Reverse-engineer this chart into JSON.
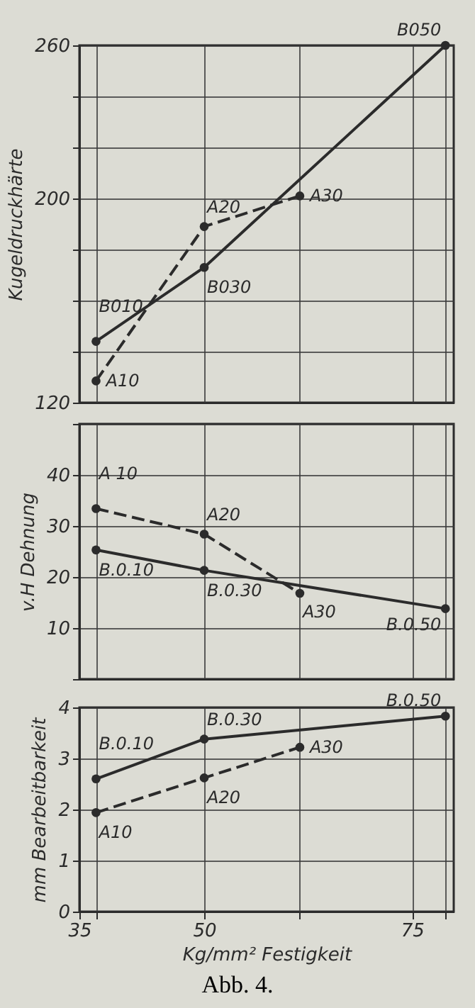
{
  "chart_data": [
    {
      "type": "line",
      "ylabel": "Kugeldruckhärte",
      "xlim": [
        35,
        80
      ],
      "ylim": [
        120,
        260
      ],
      "xticks": [
        35,
        {
          "value": 37,
          "label": null
        },
        50,
        {
          "value": 61.5,
          "label": null
        },
        75,
        {
          "value": 79,
          "label": null
        }
      ],
      "yticks": [
        120,
        {
          "value": 140,
          "label": null
        },
        {
          "value": 160,
          "label": null
        },
        {
          "value": 180,
          "label": null
        },
        200,
        {
          "value": 220,
          "label": null
        },
        {
          "value": 240,
          "label": null
        },
        260
      ],
      "tick_labels": "y",
      "grid": true,
      "marker": "circle",
      "series": [
        {
          "color": "#2b2b2b",
          "line_style": "dashed",
          "x": [
            37,
            50,
            61.5
          ],
          "values": [
            128.5,
            189,
            201
          ]
        },
        {
          "color": "#2b2b2b",
          "line_style": "solid",
          "x": [
            37,
            50,
            79
          ],
          "values": [
            144,
            173,
            260
          ]
        }
      ],
      "annotations": [
        {
          "text": "A10",
          "x": 37,
          "y": 128.5
        },
        {
          "text": "A20",
          "x": 50,
          "y": 189
        },
        {
          "text": "A30",
          "x": 61.5,
          "y": 201
        },
        {
          "text": "B010",
          "x": 37,
          "y": 144
        },
        {
          "text": "B030",
          "x": 50,
          "y": 173
        },
        {
          "text": "B050",
          "x": 79,
          "y": 260
        }
      ]
    },
    {
      "type": "line",
      "ylabel": "v.H Dehnung",
      "xlim": [
        35,
        80
      ],
      "ylim": [
        0,
        50
      ],
      "xticks": [
        35,
        {
          "value": 37,
          "label": null
        },
        50,
        {
          "value": 61.5,
          "label": null
        },
        75,
        {
          "value": 79,
          "label": null
        }
      ],
      "yticks": [
        {
          "value": 0,
          "label": null
        },
        10,
        20,
        30,
        40,
        {
          "value": 50,
          "label": null
        }
      ],
      "tick_labels": "y",
      "grid": true,
      "marker": "circle",
      "series": [
        {
          "color": "#2b2b2b",
          "line_style": "dashed",
          "x": [
            37,
            50,
            61.5
          ],
          "values": [
            33.4,
            28.4,
            16.8
          ]
        },
        {
          "color": "#2b2b2b",
          "line_style": "solid",
          "x": [
            37,
            50,
            79
          ],
          "values": [
            25.3,
            21.3,
            13.8
          ]
        }
      ],
      "annotations": [
        {
          "text": "A 10",
          "x": 37,
          "y": 33.4
        },
        {
          "text": "A20",
          "x": 50,
          "y": 28.4
        },
        {
          "text": "A30",
          "x": 61.5,
          "y": 16.8
        },
        {
          "text": "B.0.10",
          "x": 37,
          "y": 25.3
        },
        {
          "text": "B.0.30",
          "x": 50,
          "y": 21.3
        },
        {
          "text": "B.0.50",
          "x": 79,
          "y": 13.8
        }
      ]
    },
    {
      "type": "line",
      "xlabel": "Kg/mm² Festigkeit",
      "ylabel": "mm Bearbeitbarkeit",
      "xlim": [
        35,
        80
      ],
      "ylim": [
        0,
        4
      ],
      "xticks": [
        35,
        {
          "value": 37,
          "label": null
        },
        50,
        {
          "value": 61.5,
          "label": null
        },
        75,
        {
          "value": 79,
          "label": null
        }
      ],
      "yticks": [
        0,
        1,
        2,
        3,
        4
      ],
      "grid": true,
      "marker": "circle",
      "series": [
        {
          "color": "#2b2b2b",
          "line_style": "dashed",
          "x": [
            37,
            50,
            61.5
          ],
          "values": [
            1.94,
            2.62,
            3.22
          ]
        },
        {
          "color": "#2b2b2b",
          "line_style": "solid",
          "x": [
            37,
            50,
            79
          ],
          "values": [
            2.6,
            3.38,
            3.83
          ]
        }
      ],
      "annotations": [
        {
          "text": "A10",
          "x": 37,
          "y": 1.94
        },
        {
          "text": "A20",
          "x": 50,
          "y": 2.62
        },
        {
          "text": "A30",
          "x": 61.5,
          "y": 3.22
        },
        {
          "text": "B.0.10",
          "x": 37,
          "y": 2.6
        },
        {
          "text": "B.0.30",
          "x": 50,
          "y": 3.38
        },
        {
          "text": "B.0.50",
          "x": 79,
          "y": 3.83
        },
        "Abb. 4."
      ]
    }
  ]
}
